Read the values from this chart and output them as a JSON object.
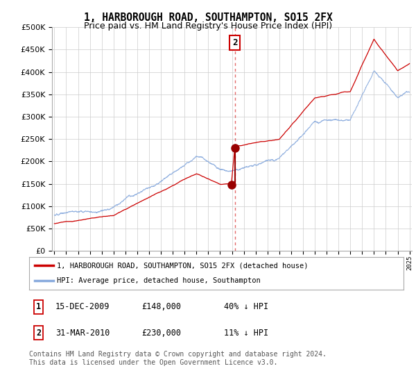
{
  "title": "1, HARBOROUGH ROAD, SOUTHAMPTON, SO15 2FX",
  "subtitle": "Price paid vs. HM Land Registry's House Price Index (HPI)",
  "title_fontsize": 10.5,
  "subtitle_fontsize": 9,
  "background_color": "#ffffff",
  "plot_bg_color": "#ffffff",
  "grid_color": "#cccccc",
  "red_line_color": "#cc0000",
  "blue_line_color": "#88aadd",
  "dashed_line_color": "#dd4444",
  "marker_color": "#990000",
  "marker_box_color": "#cc0000",
  "ylim": [
    0,
    500000
  ],
  "yticks": [
    0,
    50000,
    100000,
    150000,
    200000,
    250000,
    300000,
    350000,
    400000,
    450000,
    500000
  ],
  "year_start": 1995,
  "year_end": 2025,
  "transaction1_year": 2009.96,
  "transaction1_value": 148000,
  "transaction2_year": 2010.25,
  "transaction2_value": 230000,
  "legend_line1": "1, HARBOROUGH ROAD, SOUTHAMPTON, SO15 2FX (detached house)",
  "legend_line2": "HPI: Average price, detached house, Southampton",
  "table_row1": [
    "1",
    "15-DEC-2009",
    "£148,000",
    "40% ↓ HPI"
  ],
  "table_row2": [
    "2",
    "31-MAR-2010",
    "£230,000",
    "11% ↓ HPI"
  ],
  "footnote": "Contains HM Land Registry data © Crown copyright and database right 2024.\nThis data is licensed under the Open Government Licence v3.0.",
  "footnote_fontsize": 7
}
